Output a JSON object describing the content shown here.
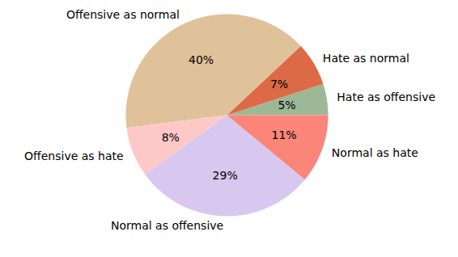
{
  "chart_data": {
    "type": "pie",
    "categories": [
      "Hate as offensive",
      "Hate as normal",
      "Offensive as normal",
      "Offensive as hate",
      "Normal as offensive",
      "Normal as hate"
    ],
    "values": [
      5,
      7,
      40,
      8,
      29,
      11
    ],
    "value_labels": [
      "5%",
      "7%",
      "40%",
      "8%",
      "29%",
      "11%"
    ],
    "colors": [
      "#9cb896",
      "#dc6a46",
      "#e0c29a",
      "#ffc8c8",
      "#d8c8ef",
      "#fa8578"
    ],
    "data_labels": true
  }
}
